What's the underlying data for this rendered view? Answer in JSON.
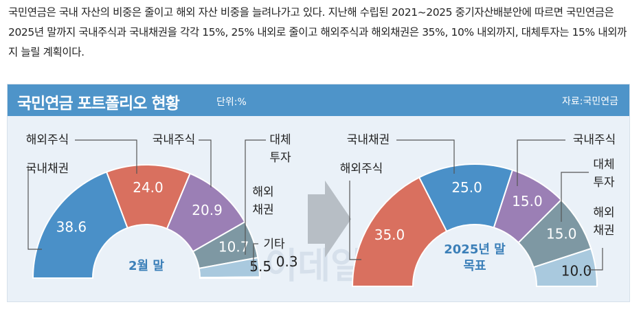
{
  "article": {
    "text": "국민연금은 국내 자산의 비중은 줄이고 해외 자산 비중을 늘려나가고 있다. 지난해 수립된 2021~2025 중기자산배분안에 따르면 국민연금은 2025년 말까지 국내주식과 국내채권을 각각 15%, 25% 내외로 줄이고 해외주식과 해외채권은 35%, 10% 내외까지, 대체투자는 15% 내외까지 늘릴 계획이다."
  },
  "banner": {
    "title": "국민연금 포트폴리오 현황",
    "unit": "단위:%",
    "source": "자료:국민연금"
  },
  "watermark": "이데일리",
  "colors": {
    "banner": "#4e94c9",
    "domestic_bond": "#4a90c8",
    "foreign_stock": "#d9705f",
    "domestic_stock": "#9b7fb5",
    "foreign_bond": "#7e98a3",
    "alternative": "#a9c9de",
    "other": "#cfe0ec"
  },
  "chart_data": [
    {
      "type": "pie",
      "style": "half-donut",
      "title": "2월 말",
      "slices": [
        {
          "label": "국내채권",
          "value": 38.6,
          "display": "38.6",
          "color_key": "domestic_bond"
        },
        {
          "label": "해외주식",
          "value": 24.0,
          "display": "24.0",
          "color_key": "foreign_stock"
        },
        {
          "label": "국내주식",
          "value": 20.9,
          "display": "20.9",
          "color_key": "domestic_stock"
        },
        {
          "label": "해외채권",
          "value": 10.7,
          "display": "10.7",
          "color_key": "foreign_bond"
        },
        {
          "label": "대체투자",
          "value": 5.5,
          "display": "5.5",
          "color_key": "alternative"
        },
        {
          "label": "기타",
          "value": 0.3,
          "display": "0.3",
          "color_key": "other"
        }
      ],
      "callouts": [
        {
          "text": "해외주식",
          "slice": 1
        },
        {
          "text": "국내채권",
          "slice": 0
        },
        {
          "text": "국내주식",
          "slice": 2
        },
        {
          "text": "대체\n투자",
          "slice": 4
        },
        {
          "text": "해외\n채권",
          "slice": 3
        },
        {
          "text": "기타",
          "slice": 5
        }
      ]
    },
    {
      "type": "pie",
      "style": "half-donut",
      "title": "2025년 말\n목표",
      "slices": [
        {
          "label": "해외주식",
          "value": 35.0,
          "display": "35.0",
          "color_key": "foreign_stock"
        },
        {
          "label": "국내채권",
          "value": 25.0,
          "display": "25.0",
          "color_key": "domestic_bond"
        },
        {
          "label": "국내주식",
          "value": 15.0,
          "display": "15.0",
          "color_key": "domestic_stock"
        },
        {
          "label": "대체투자",
          "value": 15.0,
          "display": "15.0",
          "color_key": "foreign_bond"
        },
        {
          "label": "해외채권",
          "value": 10.0,
          "display": "10.0",
          "color_key": "alternative"
        }
      ],
      "callouts": [
        {
          "text": "국내채권",
          "slice": 1
        },
        {
          "text": "해외주식",
          "slice": 0
        },
        {
          "text": "국내주식",
          "slice": 2
        },
        {
          "text": "대체\n투자",
          "slice": 3
        },
        {
          "text": "해외\n채권",
          "slice": 4
        }
      ]
    }
  ]
}
